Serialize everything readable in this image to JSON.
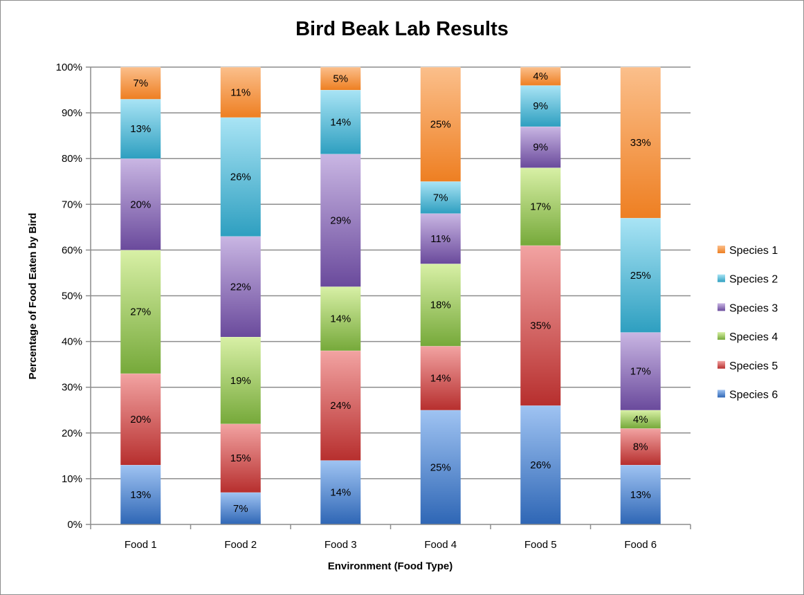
{
  "chart_data": {
    "type": "bar",
    "stacked": true,
    "title": "Bird Beak Lab Results",
    "xlabel": "Environment (Food Type)",
    "ylabel": "Percentage of Food Eaten by Bird",
    "categories": [
      "Food 1",
      "Food 2",
      "Food 3",
      "Food 4",
      "Food 5",
      "Food 6"
    ],
    "ylim": [
      0,
      100
    ],
    "yticks": [
      "0%",
      "10%",
      "20%",
      "30%",
      "40%",
      "50%",
      "60%",
      "70%",
      "80%",
      "90%",
      "100%"
    ],
    "grid": true,
    "legend_position": "right",
    "series": [
      {
        "name": "Species 6",
        "values": [
          13,
          7,
          14,
          25,
          26,
          13
        ],
        "labels": [
          "13%",
          "7%",
          "14%",
          "25%",
          "26%",
          "13%"
        ],
        "color_light": "#9fc3f2",
        "color_dark": "#2e66b5"
      },
      {
        "name": "Species 5",
        "values": [
          20,
          15,
          24,
          14,
          35,
          8
        ],
        "labels": [
          "20%",
          "15%",
          "24%",
          "14%",
          "35%",
          "8%"
        ],
        "color_light": "#f2a3a2",
        "color_dark": "#b72f2e"
      },
      {
        "name": "Species 4",
        "values": [
          27,
          19,
          14,
          18,
          17,
          4
        ],
        "labels": [
          "27%",
          "19%",
          "14%",
          "18%",
          "17%",
          "4%"
        ],
        "color_light": "#d8f0a6",
        "color_dark": "#76a93a"
      },
      {
        "name": "Species 3",
        "values": [
          20,
          22,
          29,
          11,
          9,
          17
        ],
        "labels": [
          "20%",
          "22%",
          "29%",
          "11%",
          "9%",
          "17%"
        ],
        "color_light": "#c9b6e3",
        "color_dark": "#6a4a9c"
      },
      {
        "name": "Species 2",
        "values": [
          13,
          26,
          14,
          7,
          9,
          25
        ],
        "labels": [
          "13%",
          "26%",
          "14%",
          "7%",
          "9%",
          "25%"
        ],
        "color_light": "#a9e4f5",
        "color_dark": "#2e9fc0"
      },
      {
        "name": "Species 1",
        "values": [
          7,
          11,
          5,
          25,
          4,
          33
        ],
        "labels": [
          "7%",
          "11%",
          "5%",
          "25%",
          "4%",
          "33%"
        ],
        "color_light": "#fbbf8b",
        "color_dark": "#ee7f22"
      }
    ],
    "legend_order": [
      "Species 1",
      "Species 2",
      "Species 3",
      "Species 4",
      "Species 5",
      "Species 6"
    ]
  }
}
